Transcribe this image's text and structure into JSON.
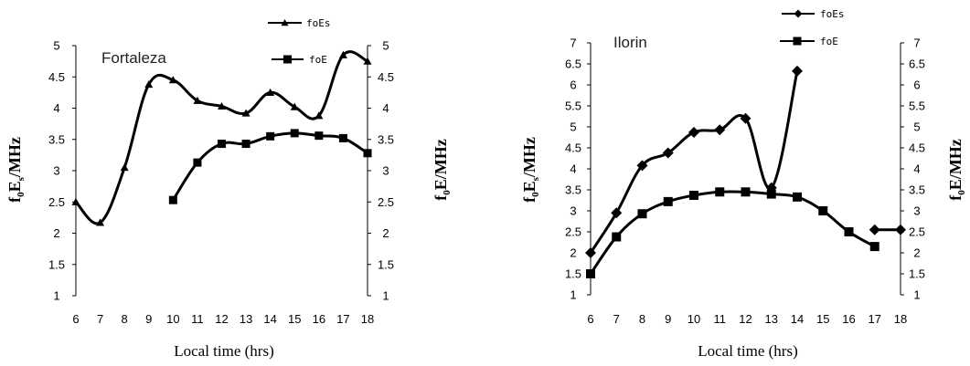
{
  "chart_data": [
    {
      "type": "line",
      "annotation": "Fortaleza",
      "xlabel": "Local time (hrs)",
      "ylabel_left": {
        "main": "f",
        "sub1": "0",
        "mid": "E",
        "sub2": "s",
        "tail": "/MHz"
      },
      "ylabel_right": {
        "main": "f",
        "sub1": "0",
        "tail": "E/MHz"
      },
      "xlim": [
        6,
        18
      ],
      "ylim": [
        1,
        5
      ],
      "x_ticks": [
        6,
        7,
        8,
        9,
        10,
        11,
        12,
        13,
        14,
        15,
        16,
        17,
        18
      ],
      "y_ticks": [
        1,
        1.5,
        2,
        2.5,
        3,
        3.5,
        4,
        4.5,
        5
      ],
      "y_tick_labels": [
        "1",
        "1.5",
        "2",
        "2.5",
        "3",
        "3.5",
        "4",
        "4.5",
        "5"
      ],
      "legend_position": "top-right",
      "series": [
        {
          "name": "foEs",
          "marker": "triangle",
          "x": [
            6,
            7,
            8,
            9,
            10,
            11,
            12,
            13,
            14,
            15,
            16,
            17,
            18
          ],
          "values": [
            2.5,
            2.17,
            3.05,
            4.38,
            4.45,
            4.12,
            4.03,
            3.92,
            4.25,
            4.02,
            3.88,
            4.85,
            4.75
          ]
        },
        {
          "name": "foE",
          "marker": "square",
          "x": [
            10,
            11,
            12,
            13,
            14,
            15,
            16,
            17,
            18
          ],
          "values": [
            2.53,
            3.13,
            3.43,
            3.43,
            3.55,
            3.6,
            3.56,
            3.52,
            3.28
          ]
        }
      ]
    },
    {
      "type": "line",
      "annotation": "Ilorin",
      "xlabel": "Local time (hrs)",
      "ylabel_left": {
        "main": "f",
        "sub1": "0",
        "mid": "E",
        "sub2": "s",
        "tail": "/MHz"
      },
      "ylabel_right": {
        "main": "f",
        "sub1": "0",
        "tail": "E/MHz"
      },
      "xlim": [
        6,
        18
      ],
      "ylim": [
        1,
        7
      ],
      "x_ticks": [
        6,
        7,
        8,
        9,
        10,
        11,
        12,
        13,
        14,
        15,
        16,
        17,
        18
      ],
      "y_ticks": [
        1,
        1.5,
        2,
        2.5,
        3,
        3.5,
        4,
        4.5,
        5,
        5.5,
        6,
        6.5,
        7
      ],
      "y_tick_labels": [
        "1",
        "1.5",
        "2",
        "2.5",
        "3",
        "3.5",
        "4",
        "4.5",
        "5",
        "5.5",
        "6",
        "6.5",
        "7"
      ],
      "legend_position": "top-right",
      "series": [
        {
          "name": "foEs",
          "marker": "diamond",
          "x": [
            6,
            7,
            8,
            9,
            10,
            11,
            12,
            13,
            14
          ],
          "values": [
            2.0,
            2.95,
            4.08,
            4.38,
            4.87,
            4.93,
            5.2,
            3.55,
            6.33
          ],
          "x2": [
            17,
            18
          ],
          "values2": [
            2.55,
            2.55
          ]
        },
        {
          "name": "foE",
          "marker": "square",
          "x": [
            6,
            7,
            8,
            9,
            10,
            11,
            12,
            13,
            14,
            15,
            16,
            17
          ],
          "values": [
            1.5,
            2.38,
            2.93,
            3.22,
            3.37,
            3.45,
            3.45,
            3.4,
            3.33,
            3.0,
            2.5,
            2.15
          ]
        }
      ]
    }
  ]
}
